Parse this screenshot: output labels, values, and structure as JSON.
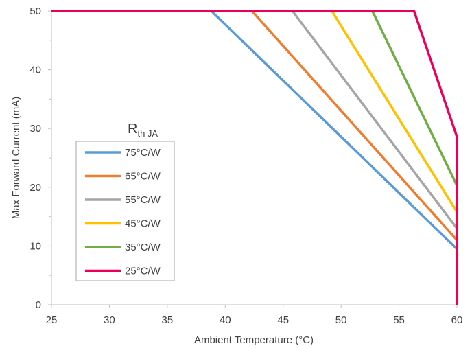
{
  "chart_data": {
    "type": "line",
    "xlabel": "Ambient Temperature (°C)",
    "ylabel": "Max Forward Current (mA)",
    "xlim": [
      25,
      60
    ],
    "ylim": [
      0,
      50
    ],
    "xticks": [
      "25",
      "30",
      "35",
      "40",
      "45",
      "50",
      "55",
      "60"
    ],
    "yticks": [
      "0",
      "10",
      "20",
      "30",
      "40",
      "50"
    ],
    "grid": false,
    "legend_title": {
      "main": "R",
      "sub": "th JA"
    },
    "legend_position": "center-left",
    "series": [
      {
        "name": "75°C/W",
        "color": "#5B9BD5",
        "points": [
          [
            25,
            50
          ],
          [
            38.8,
            50
          ],
          [
            60,
            9.5
          ],
          [
            60,
            0
          ]
        ]
      },
      {
        "name": "65°C/W",
        "color": "#ED7D31",
        "points": [
          [
            25,
            50
          ],
          [
            42.3,
            50
          ],
          [
            60,
            11.0
          ],
          [
            60,
            0
          ]
        ]
      },
      {
        "name": "55°C/W",
        "color": "#A5A5A5",
        "points": [
          [
            25,
            50
          ],
          [
            45.8,
            50
          ],
          [
            60,
            13.0
          ],
          [
            60,
            0
          ]
        ]
      },
      {
        "name": "45°C/W",
        "color": "#FFC000",
        "points": [
          [
            25,
            50
          ],
          [
            49.2,
            50
          ],
          [
            60,
            15.8
          ],
          [
            60,
            0
          ]
        ]
      },
      {
        "name": "35°C/W",
        "color": "#70AD47",
        "points": [
          [
            25,
            50
          ],
          [
            52.7,
            50
          ],
          [
            60,
            20.3
          ],
          [
            60,
            0
          ]
        ]
      },
      {
        "name": "25°C/W",
        "color": "#E8005A",
        "points": [
          [
            25,
            50
          ],
          [
            56.3,
            50
          ],
          [
            60,
            28.6
          ],
          [
            60,
            0
          ]
        ]
      }
    ]
  }
}
